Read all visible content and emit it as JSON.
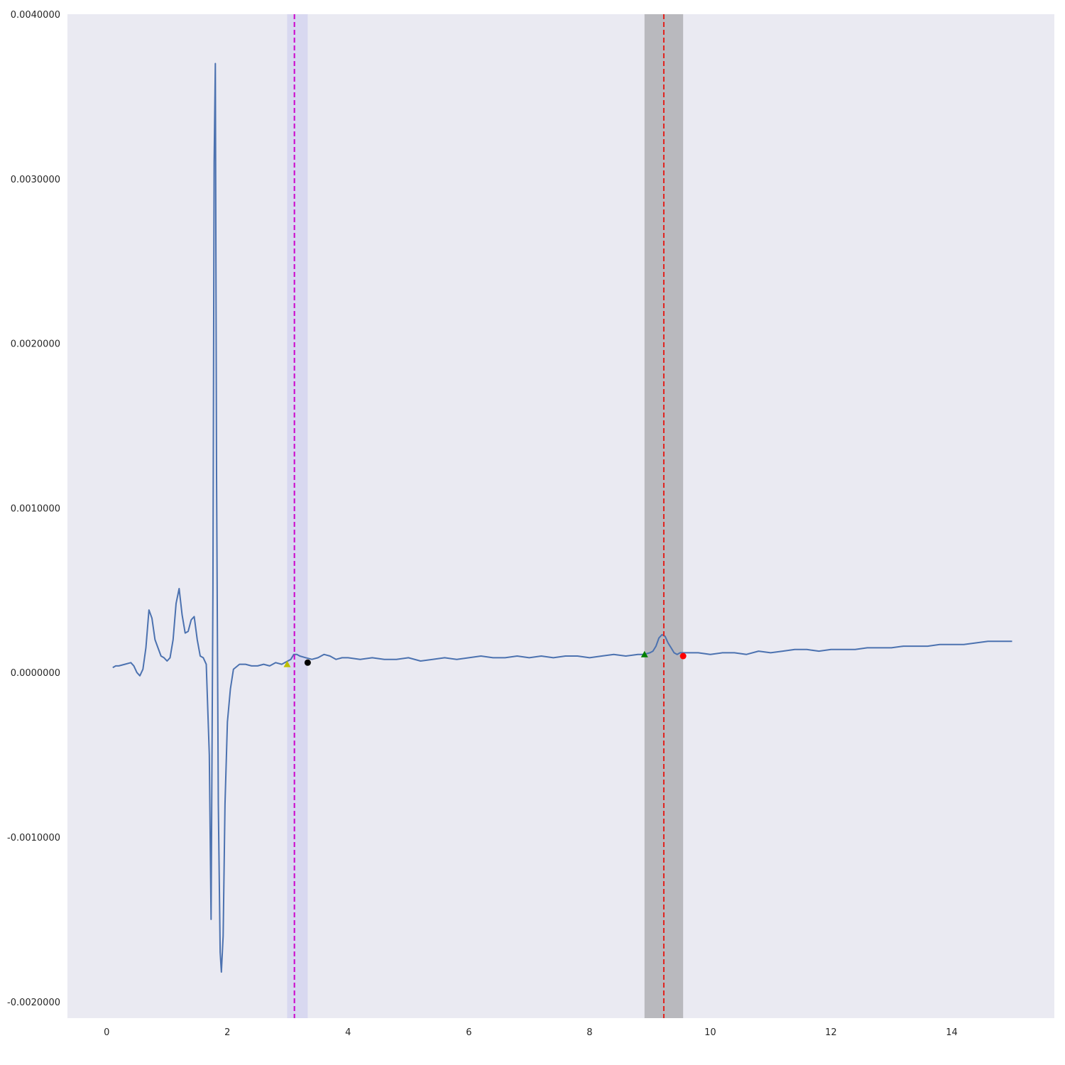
{
  "chart_data": {
    "type": "line",
    "title": "",
    "xlabel": "",
    "ylabel": "",
    "xlim": [
      -0.65,
      15.7
    ],
    "ylim": [
      -0.0021,
      0.004
    ],
    "grid": false,
    "x_ticks": [
      0,
      2,
      4,
      6,
      8,
      10,
      12,
      14
    ],
    "x_tick_labels": [
      "0",
      "2",
      "4",
      "6",
      "8",
      "10",
      "12",
      "14"
    ],
    "y_ticks": [
      -0.002,
      -0.001,
      0,
      0.001,
      0.002,
      0.003,
      0.004
    ],
    "y_tick_labels": [
      "-0.0020000",
      "-0.0010000",
      "0.0000000",
      "0.0010000",
      "0.0020000",
      "0.0030000",
      "0.0040000"
    ],
    "colors": {
      "plot_background": "#eaeaf2",
      "line": "#4c72b0",
      "band_left": "#d8d8f0",
      "band_right": "#b9b9be",
      "vline_left": "#cc00cc",
      "vline_right": "#e3211c"
    },
    "series": [
      {
        "x": [
          0.1,
          0.15,
          0.2,
          0.3,
          0.4,
          0.45,
          0.5,
          0.55,
          0.6,
          0.65,
          0.7,
          0.75,
          0.8,
          0.85,
          0.9,
          0.95,
          1.0,
          1.05,
          1.1,
          1.15,
          1.2,
          1.25,
          1.3,
          1.35,
          1.4,
          1.45,
          1.5,
          1.55,
          1.6,
          1.65,
          1.7,
          1.73,
          1.76,
          1.78,
          1.8,
          1.82,
          1.85,
          1.88,
          1.9,
          1.93,
          1.96,
          2.0,
          2.05,
          2.1,
          2.2,
          2.3,
          2.4,
          2.5,
          2.6,
          2.7,
          2.8,
          2.9,
          3.0,
          3.05,
          3.1,
          3.15,
          3.2,
          3.3,
          3.4,
          3.5,
          3.6,
          3.7,
          3.8,
          3.9,
          4.0,
          4.2,
          4.4,
          4.6,
          4.8,
          5.0,
          5.2,
          5.4,
          5.6,
          5.8,
          6.0,
          6.2,
          6.4,
          6.6,
          6.8,
          7.0,
          7.2,
          7.4,
          7.6,
          7.8,
          8.0,
          8.2,
          8.4,
          8.6,
          8.8,
          8.9,
          9.0,
          9.05,
          9.1,
          9.15,
          9.2,
          9.25,
          9.3,
          9.35,
          9.4,
          9.45,
          9.5,
          9.6,
          9.7,
          9.8,
          10.0,
          10.2,
          10.4,
          10.6,
          10.8,
          11.0,
          11.2,
          11.4,
          11.6,
          11.8,
          12.0,
          12.2,
          12.4,
          12.6,
          12.8,
          13.0,
          13.2,
          13.4,
          13.6,
          13.8,
          14.0,
          14.2,
          14.4,
          14.6,
          14.8,
          15.0
        ],
        "y": [
          3e-05,
          4e-05,
          4e-05,
          5e-05,
          6e-05,
          4e-05,
          0.0,
          -2e-05,
          2e-05,
          0.00015,
          0.00038,
          0.00033,
          0.0002,
          0.00015,
          0.0001,
          9e-05,
          7e-05,
          9e-05,
          0.0002,
          0.00042,
          0.00051,
          0.00035,
          0.00024,
          0.00025,
          0.00032,
          0.00034,
          0.0002,
          0.0001,
          9e-05,
          5e-05,
          -0.0005,
          -0.0015,
          0.0005,
          0.0031,
          0.0037,
          0.0012,
          -0.0008,
          -0.0017,
          -0.00182,
          -0.0016,
          -0.0008,
          -0.0003,
          -0.0001,
          2e-05,
          5e-05,
          5e-05,
          4e-05,
          4e-05,
          5e-05,
          4e-05,
          6e-05,
          5e-05,
          7e-05,
          8e-05,
          0.00011,
          0.00011,
          0.0001,
          9e-05,
          8e-05,
          9e-05,
          0.00011,
          0.0001,
          8e-05,
          9e-05,
          9e-05,
          8e-05,
          9e-05,
          8e-05,
          8e-05,
          9e-05,
          7e-05,
          8e-05,
          9e-05,
          8e-05,
          9e-05,
          0.0001,
          9e-05,
          9e-05,
          0.0001,
          9e-05,
          0.0001,
          9e-05,
          0.0001,
          0.0001,
          9e-05,
          0.0001,
          0.00011,
          0.0001,
          0.00011,
          0.00011,
          0.00012,
          0.00013,
          0.00016,
          0.00021,
          0.00023,
          0.00022,
          0.00018,
          0.00015,
          0.00012,
          0.00011,
          0.00012,
          0.00012,
          0.00012,
          0.00012,
          0.00011,
          0.00012,
          0.00012,
          0.00011,
          0.00013,
          0.00012,
          0.00013,
          0.00014,
          0.00014,
          0.00013,
          0.00014,
          0.00014,
          0.00014,
          0.00015,
          0.00015,
          0.00015,
          0.00016,
          0.00016,
          0.00016,
          0.00017,
          0.00017,
          0.00017,
          0.00018,
          0.00019,
          0.00019,
          0.00019
        ]
      }
    ],
    "bands": [
      {
        "x0": 2.99,
        "x1": 3.33,
        "color": "#d8d8f0"
      },
      {
        "x0": 8.91,
        "x1": 9.55,
        "color": "#b9b9be"
      }
    ],
    "vlines": [
      {
        "x": 3.11,
        "color": "#cc00cc",
        "style": "dashed"
      },
      {
        "x": 9.23,
        "color": "#e3211c",
        "style": "dashed"
      }
    ],
    "markers": [
      {
        "x": 2.99,
        "y": 5e-05,
        "shape": "triangle",
        "color": "#bfbf00"
      },
      {
        "x": 3.33,
        "y": 6e-05,
        "shape": "circle",
        "color": "#000000"
      },
      {
        "x": 8.91,
        "y": 0.00011,
        "shape": "triangle",
        "color": "#007f00"
      },
      {
        "x": 9.55,
        "y": 0.0001,
        "shape": "circle",
        "color": "#ff0000"
      }
    ]
  }
}
